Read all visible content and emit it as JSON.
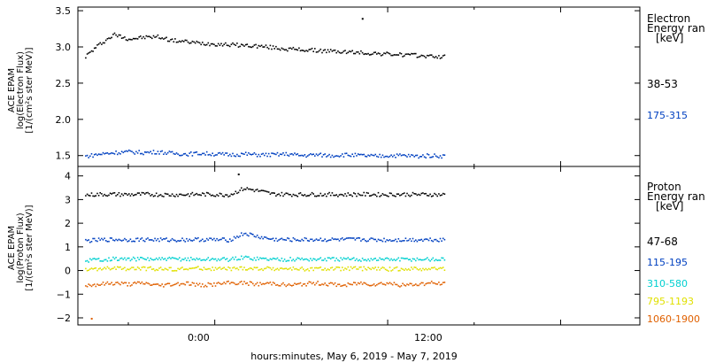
{
  "figure": {
    "xlabel": "hours:minutes, May  6, 2019 - May  7, 2019",
    "x_ticks": [
      "0:00",
      "12:00"
    ]
  },
  "chart_data": [
    {
      "type": "scatter",
      "panel": "electron",
      "ylabel_lines": [
        "ACE EPAM",
        "log(Electron Flux)",
        "[1/(cm²s ster MeV)]"
      ],
      "ylim": [
        1.35,
        3.55
      ],
      "y_ticks": [
        1.5,
        2.0,
        2.5,
        3.0,
        3.5
      ],
      "y_tick_labels": [
        "1.5",
        "2.0",
        "2.5",
        "3.0",
        "3.5"
      ],
      "x_range_hours": [
        -9.5,
        29.5
      ],
      "legend_title_lines": [
        "Electron",
        "Energy ran",
        "[keV]"
      ],
      "series": [
        {
          "name": "38-53",
          "color": "#000000",
          "x": [
            -9,
            -8,
            -7,
            -6,
            -5,
            -4,
            -3,
            -2,
            -1,
            0,
            1,
            2,
            3,
            4,
            5,
            6,
            7,
            8,
            9,
            10,
            11,
            12,
            13,
            14,
            15,
            16
          ],
          "y": [
            2.88,
            3.05,
            3.18,
            3.12,
            3.14,
            3.15,
            3.1,
            3.08,
            3.06,
            3.05,
            3.04,
            3.03,
            3.02,
            3.0,
            2.98,
            2.97,
            2.96,
            2.95,
            2.94,
            2.93,
            2.92,
            2.91,
            2.9,
            2.89,
            2.88,
            2.87
          ],
          "outliers": [
            {
              "x": 10.2,
              "y": 3.4
            }
          ]
        },
        {
          "name": "175-315",
          "color": "#0040c0",
          "x": [
            -9,
            -8,
            -7,
            -6,
            -5,
            -4,
            -3,
            -2,
            -1,
            0,
            1,
            2,
            3,
            4,
            5,
            6,
            7,
            8,
            9,
            10,
            11,
            12,
            13,
            14,
            15,
            16
          ],
          "y": [
            1.5,
            1.53,
            1.55,
            1.56,
            1.55,
            1.56,
            1.54,
            1.53,
            1.54,
            1.53,
            1.52,
            1.53,
            1.52,
            1.52,
            1.53,
            1.51,
            1.52,
            1.51,
            1.52,
            1.51,
            1.5,
            1.51,
            1.51,
            1.5,
            1.51,
            1.5
          ]
        }
      ]
    },
    {
      "type": "scatter",
      "panel": "proton",
      "ylabel_lines": [
        "ACE EPAM",
        "log(Proton Flux)",
        "[1/(cm²s ster MeV)]"
      ],
      "ylim": [
        -2.3,
        4.4
      ],
      "y_ticks": [
        -2,
        -1,
        0,
        1,
        2,
        3,
        4
      ],
      "y_tick_labels": [
        "−2",
        "−1",
        "0",
        "1",
        "2",
        "3",
        "4"
      ],
      "x_range_hours": [
        -9.5,
        29.5
      ],
      "legend_title_lines": [
        "Proton",
        "Energy ran",
        "[keV]"
      ],
      "series": [
        {
          "name": "47-68",
          "color": "#000000",
          "x": [
            -9,
            -8,
            -7,
            -6,
            -5,
            -4,
            -3,
            -2,
            -1,
            0,
            1,
            2,
            3,
            4,
            5,
            6,
            7,
            8,
            9,
            10,
            11,
            12,
            13,
            14,
            15,
            16
          ],
          "y": [
            3.22,
            3.25,
            3.25,
            3.24,
            3.25,
            3.24,
            3.23,
            3.24,
            3.25,
            3.24,
            3.23,
            3.5,
            3.4,
            3.26,
            3.25,
            3.24,
            3.25,
            3.24,
            3.24,
            3.25,
            3.24,
            3.24,
            3.25,
            3.24,
            3.24,
            3.23
          ],
          "outliers": [
            {
              "x": 1.6,
              "y": 4.1
            }
          ]
        },
        {
          "name": "115-195",
          "color": "#0040c0",
          "x": [
            -9,
            -8,
            -7,
            -6,
            -5,
            -4,
            -3,
            -2,
            -1,
            0,
            1,
            2,
            3,
            4,
            5,
            6,
            7,
            8,
            9,
            10,
            11,
            12,
            13,
            14,
            15,
            16
          ],
          "y": [
            1.28,
            1.32,
            1.34,
            1.33,
            1.34,
            1.33,
            1.32,
            1.33,
            1.34,
            1.33,
            1.32,
            1.6,
            1.45,
            1.34,
            1.33,
            1.33,
            1.34,
            1.33,
            1.33,
            1.34,
            1.33,
            1.32,
            1.33,
            1.33,
            1.34,
            1.33
          ]
        },
        {
          "name": "310-580",
          "color": "#00d0d0",
          "x": [
            -9,
            -8,
            -7,
            -6,
            -5,
            -4,
            -3,
            -2,
            -1,
            0,
            1,
            2,
            3,
            4,
            5,
            6,
            7,
            8,
            9,
            10,
            11,
            12,
            13,
            14,
            15,
            16
          ],
          "y": [
            0.45,
            0.5,
            0.52,
            0.51,
            0.52,
            0.5,
            0.51,
            0.52,
            0.5,
            0.51,
            0.5,
            0.58,
            0.53,
            0.51,
            0.5,
            0.51,
            0.5,
            0.51,
            0.5,
            0.5,
            0.51,
            0.5,
            0.5,
            0.51,
            0.5,
            0.5
          ]
        },
        {
          "name": "795-1193",
          "color": "#e0e000",
          "x": [
            -9,
            -8,
            -7,
            -6,
            -5,
            -4,
            -3,
            -2,
            -1,
            0,
            1,
            2,
            3,
            4,
            5,
            6,
            7,
            8,
            9,
            10,
            11,
            12,
            13,
            14,
            15,
            16
          ],
          "y": [
            0.05,
            0.1,
            0.12,
            0.1,
            0.11,
            0.1,
            0.09,
            0.1,
            0.12,
            0.1,
            0.09,
            0.12,
            0.1,
            0.11,
            0.1,
            0.1,
            0.09,
            0.1,
            0.1,
            0.11,
            0.1,
            0.09,
            0.1,
            0.1,
            0.11,
            0.1
          ]
        },
        {
          "name": "1060-1900",
          "color": "#e06000",
          "x": [
            -9,
            -8,
            -7,
            -6,
            -5,
            -4,
            -3,
            -2,
            -1,
            0,
            1,
            2,
            3,
            4,
            5,
            6,
            7,
            8,
            9,
            10,
            11,
            12,
            13,
            14,
            15,
            16
          ],
          "y": [
            -0.6,
            -0.55,
            -0.5,
            -0.55,
            -0.5,
            -0.6,
            -0.55,
            -0.5,
            -0.6,
            -0.55,
            -0.5,
            -0.5,
            -0.55,
            -0.5,
            -0.6,
            -0.55,
            -0.5,
            -0.55,
            -0.6,
            -0.5,
            -0.55,
            -0.5,
            -0.6,
            -0.55,
            -0.5,
            -0.55
          ],
          "outliers": [
            {
              "x": -8.6,
              "y": -2.0
            }
          ]
        }
      ]
    }
  ]
}
